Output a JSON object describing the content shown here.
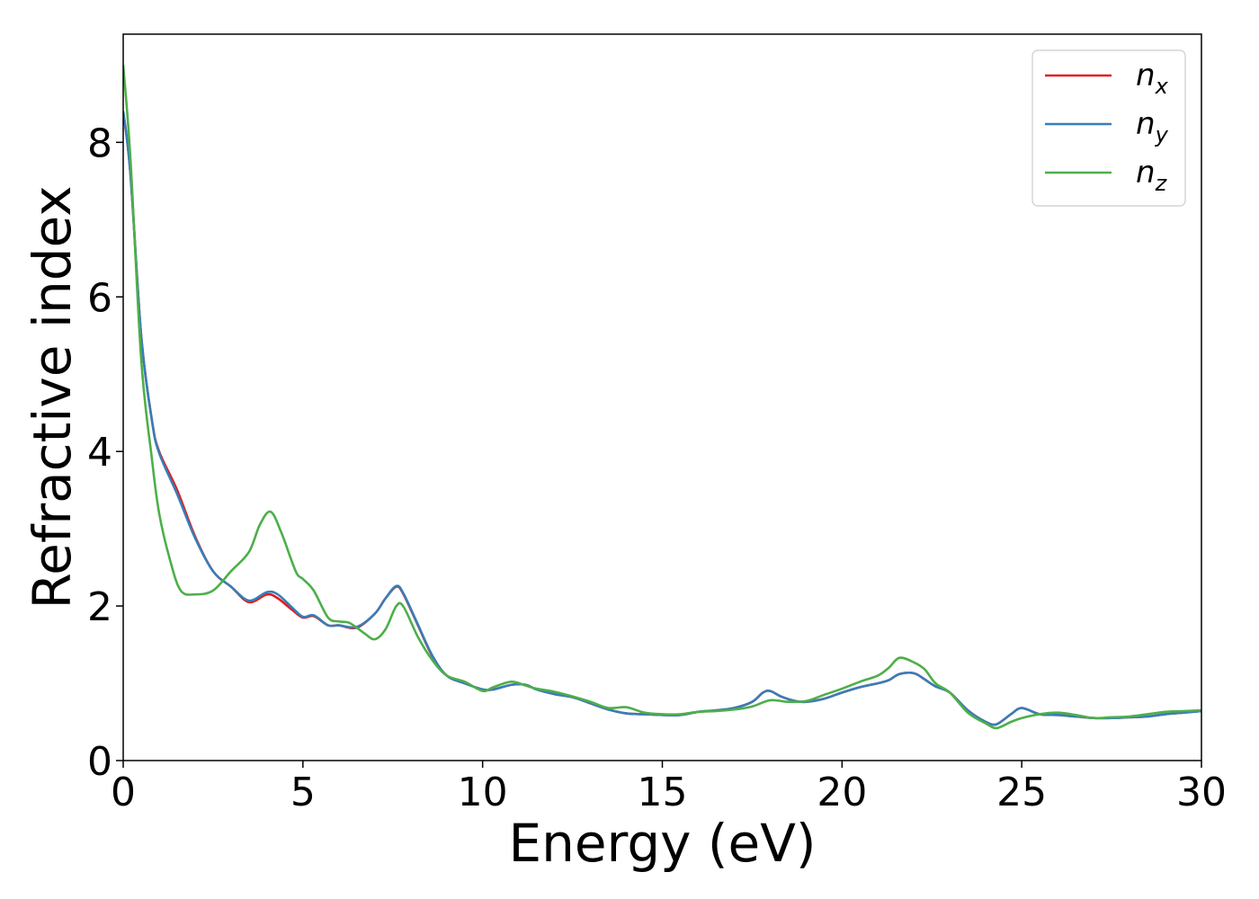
{
  "chart_data": {
    "type": "line",
    "title": "",
    "xlabel": "Energy (eV)",
    "ylabel": "Refractive index",
    "xlim": [
      0,
      30
    ],
    "ylim": [
      0,
      9.4
    ],
    "xticks": [
      0,
      5,
      10,
      15,
      20,
      25,
      30
    ],
    "yticks": [
      0,
      2,
      4,
      6,
      8
    ],
    "grid": false,
    "legend_position": "top-right",
    "series": [
      {
        "name": "n_x",
        "legend_base": "n",
        "legend_sub": "x",
        "color": "#e41a1c",
        "x": [
          0,
          0.2,
          0.5,
          0.8,
          1.0,
          1.5,
          2.0,
          2.5,
          3.0,
          3.5,
          4.0,
          4.3,
          4.7,
          5.0,
          5.3,
          5.7,
          6.0,
          6.5,
          7.0,
          7.3,
          7.6,
          7.8,
          8.2,
          8.6,
          9.0,
          9.5,
          10.0,
          10.3,
          10.8,
          11.2,
          11.5,
          12.0,
          12.5,
          13.0,
          13.5,
          14.0,
          14.5,
          15.0,
          15.5,
          16.0,
          16.5,
          17.0,
          17.5,
          17.8,
          18.0,
          18.3,
          18.7,
          19.0,
          19.5,
          20.0,
          20.5,
          21.0,
          21.3,
          21.6,
          22.0,
          22.3,
          22.6,
          23.0,
          23.5,
          24.0,
          24.3,
          24.7,
          25.0,
          25.5,
          26.0,
          26.5,
          27.0,
          27.5,
          28.0,
          28.5,
          29.0,
          29.5,
          30.0
        ],
        "values": [
          8.4,
          7.6,
          5.5,
          4.4,
          4.0,
          3.5,
          2.9,
          2.45,
          2.25,
          2.05,
          2.15,
          2.1,
          1.95,
          1.85,
          1.87,
          1.75,
          1.75,
          1.72,
          1.9,
          2.1,
          2.25,
          2.15,
          1.75,
          1.35,
          1.1,
          1.0,
          0.92,
          0.92,
          0.98,
          0.98,
          0.92,
          0.86,
          0.82,
          0.74,
          0.66,
          0.61,
          0.6,
          0.59,
          0.59,
          0.63,
          0.65,
          0.68,
          0.76,
          0.88,
          0.9,
          0.83,
          0.77,
          0.76,
          0.8,
          0.88,
          0.95,
          1.0,
          1.04,
          1.12,
          1.13,
          1.05,
          0.96,
          0.88,
          0.65,
          0.5,
          0.47,
          0.6,
          0.68,
          0.6,
          0.59,
          0.57,
          0.55,
          0.55,
          0.56,
          0.57,
          0.6,
          0.62,
          0.64
        ]
      },
      {
        "name": "n_y",
        "legend_base": "n",
        "legend_sub": "y",
        "color": "#377eb8",
        "x": [
          0,
          0.2,
          0.5,
          0.8,
          1.0,
          1.5,
          2.0,
          2.5,
          3.0,
          3.5,
          4.0,
          4.3,
          4.7,
          5.0,
          5.3,
          5.7,
          6.0,
          6.5,
          7.0,
          7.3,
          7.6,
          7.8,
          8.2,
          8.6,
          9.0,
          9.5,
          10.0,
          10.3,
          10.8,
          11.2,
          11.5,
          12.0,
          12.5,
          13.0,
          13.5,
          14.0,
          14.5,
          15.0,
          15.5,
          16.0,
          16.5,
          17.0,
          17.5,
          17.8,
          18.0,
          18.3,
          18.7,
          19.0,
          19.5,
          20.0,
          20.5,
          21.0,
          21.3,
          21.6,
          22.0,
          22.3,
          22.6,
          23.0,
          23.5,
          24.0,
          24.3,
          24.7,
          25.0,
          25.5,
          26.0,
          26.5,
          27.0,
          27.5,
          28.0,
          28.5,
          29.0,
          29.5,
          30.0
        ],
        "values": [
          8.4,
          7.6,
          5.5,
          4.4,
          3.98,
          3.45,
          2.88,
          2.45,
          2.25,
          2.07,
          2.18,
          2.15,
          1.98,
          1.86,
          1.88,
          1.75,
          1.75,
          1.73,
          1.9,
          2.1,
          2.26,
          2.16,
          1.76,
          1.36,
          1.1,
          1.0,
          0.92,
          0.92,
          0.98,
          0.98,
          0.92,
          0.86,
          0.82,
          0.74,
          0.66,
          0.61,
          0.6,
          0.59,
          0.59,
          0.63,
          0.65,
          0.68,
          0.76,
          0.88,
          0.9,
          0.83,
          0.77,
          0.76,
          0.8,
          0.88,
          0.95,
          1.0,
          1.04,
          1.12,
          1.13,
          1.05,
          0.96,
          0.88,
          0.65,
          0.5,
          0.47,
          0.6,
          0.68,
          0.6,
          0.59,
          0.57,
          0.55,
          0.55,
          0.56,
          0.57,
          0.6,
          0.62,
          0.64
        ]
      },
      {
        "name": "n_z",
        "legend_base": "n",
        "legend_sub": "z",
        "color": "#4daf4a",
        "x": [
          0,
          0.2,
          0.5,
          0.8,
          1.0,
          1.3,
          1.6,
          2.0,
          2.5,
          3.0,
          3.5,
          3.8,
          4.1,
          4.4,
          4.8,
          5.0,
          5.3,
          5.7,
          6.0,
          6.3,
          6.7,
          7.0,
          7.3,
          7.6,
          7.8,
          8.2,
          8.6,
          9.0,
          9.5,
          10.0,
          10.3,
          10.8,
          11.2,
          11.5,
          12.0,
          12.5,
          13.0,
          13.5,
          14.0,
          14.5,
          15.0,
          15.5,
          16.0,
          16.5,
          17.0,
          17.5,
          18.0,
          18.5,
          19.0,
          19.5,
          20.0,
          20.5,
          21.0,
          21.3,
          21.6,
          22.0,
          22.3,
          22.6,
          23.0,
          23.5,
          24.0,
          24.3,
          24.7,
          25.0,
          25.5,
          26.0,
          26.5,
          27.0,
          27.5,
          28.0,
          28.5,
          29.0,
          29.5,
          30.0
        ],
        "values": [
          9.0,
          7.8,
          5.2,
          3.9,
          3.2,
          2.6,
          2.2,
          2.15,
          2.2,
          2.45,
          2.7,
          3.05,
          3.22,
          2.95,
          2.45,
          2.35,
          2.2,
          1.85,
          1.8,
          1.78,
          1.65,
          1.57,
          1.7,
          2.0,
          1.99,
          1.6,
          1.3,
          1.1,
          1.02,
          0.9,
          0.95,
          1.02,
          0.97,
          0.93,
          0.89,
          0.83,
          0.76,
          0.68,
          0.69,
          0.62,
          0.6,
          0.6,
          0.63,
          0.64,
          0.66,
          0.7,
          0.78,
          0.76,
          0.77,
          0.85,
          0.93,
          1.02,
          1.1,
          1.2,
          1.33,
          1.27,
          1.18,
          1.0,
          0.88,
          0.62,
          0.48,
          0.42,
          0.5,
          0.55,
          0.6,
          0.62,
          0.59,
          0.55,
          0.56,
          0.57,
          0.6,
          0.63,
          0.64,
          0.65
        ]
      }
    ]
  }
}
